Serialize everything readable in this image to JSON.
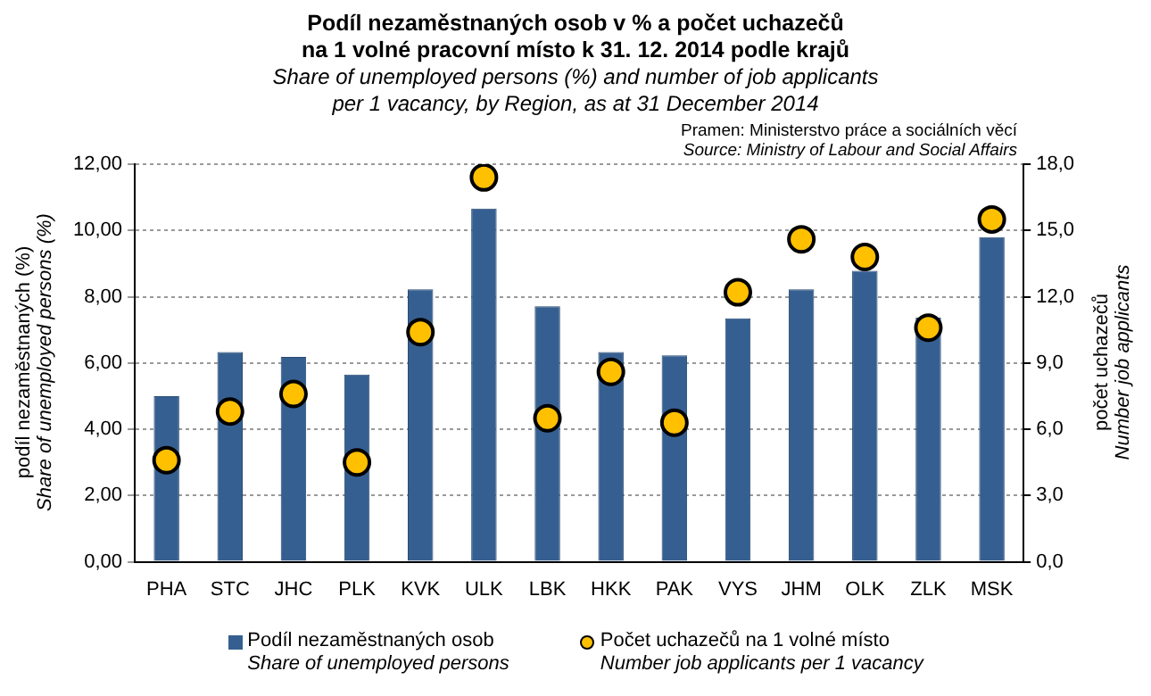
{
  "chart_data": {
    "type": "bar",
    "title": "Podíl nezaměstnaných osob v % a počet uchazečů\nna 1 volné pracovní místo k 31. 12. 2014 podle krajů",
    "subtitle": "Share of unemployed persons (%) and number of job applicants\nper 1 vacancy, by Region, as at 31 December 2014",
    "annotations": [
      "Pramen: Ministerstvo práce a sociálních věcí",
      "Source: Ministry of Labour and Social Affairs"
    ],
    "ylabel": "podíl nezaměstnaných (%)\nShare of unemployed persons (%)",
    "y2label": "počet uchazečů\nNumber job applicants",
    "categories": [
      "PHA",
      "STC",
      "JHC",
      "PLK",
      "KVK",
      "ULK",
      "LBK",
      "HKK",
      "PAK",
      "VYS",
      "JHM",
      "OLK",
      "ZLK",
      "MSK"
    ],
    "series": [
      {
        "name": "Podíl nezaměstnaných osob\nShare of unemployed persons",
        "color": "#365f91",
        "values": [
          5.0,
          6.33,
          6.18,
          5.65,
          8.22,
          10.66,
          7.71,
          6.33,
          6.23,
          7.35,
          8.22,
          8.78,
          7.37,
          9.8
        ]
      },
      {
        "name": "Počet uchazečů na 1 volné místo\nNumber job applicants per 1 vacancy",
        "type": "scatter",
        "axis": "y2",
        "color": "#ffc000",
        "marker": "circle",
        "values": [
          4.6,
          6.8,
          7.6,
          4.5,
          10.4,
          17.4,
          6.5,
          8.6,
          6.3,
          12.2,
          14.6,
          13.8,
          10.6,
          15.5
        ]
      }
    ],
    "ylim": [
      0,
      12
    ],
    "yticks": [
      {
        "value": 0,
        "label": "0,00"
      },
      {
        "value": 2,
        "label": "2,00"
      },
      {
        "value": 4,
        "label": "4,00"
      },
      {
        "value": 6,
        "label": "6,00"
      },
      {
        "value": 8,
        "label": "8,00"
      },
      {
        "value": 10,
        "label": "10,00"
      },
      {
        "value": 12,
        "label": "12,00"
      }
    ],
    "y2lim": [
      0,
      18
    ],
    "y2ticks": [
      {
        "value": 0,
        "label": "0,0"
      },
      {
        "value": 3,
        "label": "3,0"
      },
      {
        "value": 6,
        "label": "6,0"
      },
      {
        "value": 9,
        "label": "9,0"
      },
      {
        "value": 12,
        "label": "12,0"
      },
      {
        "value": 15,
        "label": "15,0"
      },
      {
        "value": 18,
        "label": "18,0"
      }
    ],
    "grid": "y",
    "legend": "bottom"
  }
}
